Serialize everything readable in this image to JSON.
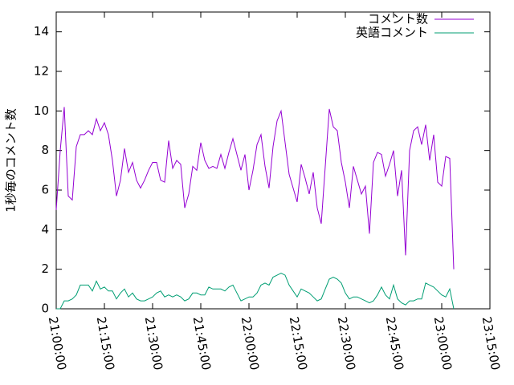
{
  "chart_data": {
    "type": "line",
    "ylabel": "1秒毎のコメント数",
    "x": [
      "21:00:00",
      "21:01:15",
      "21:02:30",
      "21:03:45",
      "21:05:00",
      "21:06:15",
      "21:07:30",
      "21:08:45",
      "21:10:00",
      "21:11:15",
      "21:12:30",
      "21:13:45",
      "21:15:00",
      "21:16:15",
      "21:17:30",
      "21:18:45",
      "21:20:00",
      "21:21:15",
      "21:22:30",
      "21:23:45",
      "21:25:00",
      "21:26:15",
      "21:27:30",
      "21:28:45",
      "21:30:00",
      "21:31:15",
      "21:32:30",
      "21:33:45",
      "21:35:00",
      "21:36:15",
      "21:37:30",
      "21:38:45",
      "21:40:00",
      "21:41:15",
      "21:42:30",
      "21:43:45",
      "21:45:00",
      "21:46:15",
      "21:47:30",
      "21:48:45",
      "21:50:00",
      "21:51:15",
      "21:52:30",
      "21:53:45",
      "21:55:00",
      "21:56:15",
      "21:57:30",
      "21:58:45",
      "22:00:00",
      "22:01:15",
      "22:02:30",
      "22:03:45",
      "22:05:00",
      "22:06:15",
      "22:07:30",
      "22:08:45",
      "22:10:00",
      "22:11:15",
      "22:12:30",
      "22:13:45",
      "22:15:00",
      "22:16:15",
      "22:17:30",
      "22:18:45",
      "22:20:00",
      "22:21:15",
      "22:22:30",
      "22:23:45",
      "22:25:00",
      "22:26:15",
      "22:27:30",
      "22:28:45",
      "22:30:00",
      "22:31:15",
      "22:32:30",
      "22:33:45",
      "22:35:00",
      "22:36:15",
      "22:37:30",
      "22:38:45",
      "22:40:00",
      "22:41:15",
      "22:42:30",
      "22:43:45",
      "22:45:00",
      "22:46:15",
      "22:47:30",
      "22:48:45",
      "22:50:00",
      "22:51:15",
      "22:52:30",
      "22:53:45",
      "22:55:00",
      "22:56:15",
      "22:57:30",
      "22:58:45",
      "23:00:00",
      "23:01:15",
      "23:02:30",
      "23:03:45"
    ],
    "series": [
      {
        "name": "コメント数",
        "color": "#9400d3",
        "values": [
          5.0,
          8.0,
          10.2,
          5.7,
          5.5,
          8.2,
          8.8,
          8.8,
          9.0,
          8.8,
          9.6,
          9.0,
          9.4,
          8.8,
          7.5,
          5.7,
          6.5,
          8.1,
          6.9,
          7.4,
          6.5,
          6.1,
          6.5,
          7.0,
          7.4,
          7.4,
          6.5,
          6.4,
          8.5,
          7.1,
          7.5,
          7.3,
          5.1,
          5.8,
          7.2,
          7.0,
          8.4,
          7.5,
          7.1,
          7.2,
          7.1,
          7.8,
          7.1,
          7.9,
          8.6,
          7.8,
          7.0,
          7.8,
          6.0,
          7.0,
          8.3,
          8.8,
          7.2,
          6.1,
          8.2,
          9.5,
          10.0,
          8.4,
          6.8,
          6.1,
          5.4,
          7.3,
          6.6,
          5.8,
          6.9,
          5.1,
          4.3,
          7.2,
          10.1,
          9.2,
          9.0,
          7.4,
          6.4,
          5.1,
          7.2,
          6.5,
          5.8,
          6.2,
          3.8,
          7.4,
          7.9,
          7.8,
          6.7,
          7.3,
          8.0,
          5.7,
          7.0,
          2.7,
          8.0,
          9.0,
          9.2,
          8.3,
          9.3,
          7.5,
          8.8,
          6.4,
          6.2,
          7.7,
          7.6,
          2.0
        ]
      },
      {
        "name": "英語コメント",
        "color": "#009e73",
        "values": [
          0,
          0,
          0.4,
          0.4,
          0.5,
          0.7,
          1.2,
          1.2,
          1.2,
          0.9,
          1.4,
          1.0,
          1.1,
          0.9,
          0.9,
          0.5,
          0.8,
          1.0,
          0.6,
          0.8,
          0.5,
          0.4,
          0.4,
          0.5,
          0.6,
          0.8,
          0.9,
          0.6,
          0.7,
          0.6,
          0.7,
          0.6,
          0.4,
          0.5,
          0.8,
          0.8,
          0.7,
          0.7,
          1.1,
          1.0,
          1.0,
          1.0,
          0.9,
          1.1,
          1.2,
          0.8,
          0.4,
          0.5,
          0.6,
          0.6,
          0.8,
          1.2,
          1.3,
          1.2,
          1.6,
          1.7,
          1.8,
          1.7,
          1.2,
          0.9,
          0.6,
          1.0,
          0.9,
          0.8,
          0.6,
          0.4,
          0.5,
          1.0,
          1.5,
          1.6,
          1.5,
          1.3,
          0.8,
          0.5,
          0.6,
          0.6,
          0.5,
          0.4,
          0.3,
          0.4,
          0.7,
          1.1,
          0.7,
          0.5,
          1.2,
          0.5,
          0.3,
          0.2,
          0.4,
          0.4,
          0.5,
          0.5,
          1.3,
          1.2,
          1.1,
          0.9,
          0.7,
          0.6,
          1.0,
          0
        ]
      }
    ],
    "xlim": [
      "21:00:00",
      "23:15:00"
    ],
    "xticks": [
      "21:00:00",
      "21:15:00",
      "21:30:00",
      "21:45:00",
      "22:00:00",
      "22:15:00",
      "22:30:00",
      "22:45:00",
      "23:00:00",
      "23:15:00"
    ],
    "ylim": [
      0,
      15
    ],
    "yticks": [
      0,
      2,
      4,
      6,
      8,
      10,
      12,
      14
    ],
    "legend": "top-right"
  }
}
